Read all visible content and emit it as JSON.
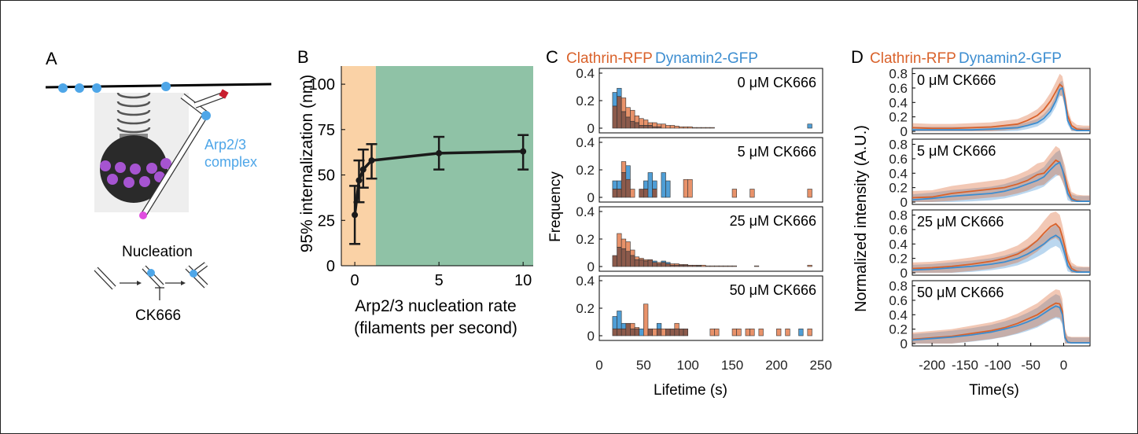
{
  "figure": {
    "panel_letters": [
      "A",
      "B",
      "C",
      "D"
    ],
    "colors": {
      "clathrin": "#D9622B",
      "dynamin": "#3C8DD0",
      "clathrin_bar": "#E8926A",
      "dynamin_bar": "#4F9ED6",
      "overlap_bar": "#8C5A4B",
      "nucleation_low": "#FAD2A6",
      "nucleation_high": "#8FC2A6",
      "arp23": "#4EA6E8",
      "cargo": "#A654D1",
      "pointed_end": "#E04CE0",
      "capped_end": "#C81E2E",
      "vesicle": "#2A2A2A"
    }
  },
  "panel_a": {
    "letter": "A",
    "arp_label_line1": "Arp2/3",
    "arp_label_line2": "complex",
    "nucleation_label": "Nucleation",
    "inhibitor_label": "CK666"
  },
  "panel_b": {
    "letter": "B",
    "chart_data": {
      "type": "line",
      "x": [
        0,
        0.25,
        0.5,
        1,
        5,
        10
      ],
      "y": [
        28,
        47,
        53,
        58,
        62,
        63
      ],
      "error_low": [
        12,
        35,
        43,
        48,
        53,
        53
      ],
      "error_high": [
        44,
        58,
        64,
        67,
        71,
        72
      ],
      "xlabel": "Arp2/3 nucleation rate",
      "xlabel_line2": "(filaments per second)",
      "ylabel": "95% internalization (nm)",
      "xlim": [
        -0.8,
        10.6
      ],
      "ylim": [
        0,
        110
      ],
      "xticks": [
        0,
        5,
        10
      ],
      "yticks": [
        0,
        25,
        50,
        75,
        100
      ],
      "shaded_regions": [
        [
          -0.8,
          1.25
        ],
        [
          1.25,
          10.6
        ]
      ]
    }
  },
  "panel_c": {
    "letter": "C",
    "legend_clathrin": "Clathrin-RFP",
    "legend_dynamin": "Dynamin2-GFP",
    "xlabel": "Lifetime (s)",
    "ylabel": "Frequency",
    "xticks": [
      0,
      50,
      100,
      150,
      200,
      250
    ],
    "yticks": [
      0,
      0.2,
      0.4
    ],
    "chart_data": [
      {
        "type": "bar",
        "label": "0 μM CK666",
        "bin_width": 5,
        "bins": [
          15,
          20,
          25,
          30,
          35,
          40,
          45,
          50,
          55,
          60,
          65,
          70,
          75,
          80,
          85,
          90,
          95,
          100,
          105,
          110,
          115,
          120,
          125,
          130,
          135,
          140,
          145,
          150,
          155,
          160,
          165,
          170,
          175,
          180,
          185,
          190,
          195,
          200,
          205,
          210,
          215,
          220,
          225,
          230,
          235,
          240
        ],
        "clathrin": [
          0.16,
          0.23,
          0.22,
          0.15,
          0.13,
          0.09,
          0.07,
          0.06,
          0.04,
          0.04,
          0.03,
          0.03,
          0.02,
          0.02,
          0.015,
          0.01,
          0.01,
          0.01,
          0.005,
          0.005,
          0.005,
          0.005,
          0.005,
          0,
          0,
          0,
          0,
          0,
          0,
          0,
          0,
          0,
          0,
          0,
          0,
          0,
          0,
          0,
          0,
          0,
          0,
          0,
          0,
          0,
          0,
          0
        ],
        "dynamin": [
          0.26,
          0.29,
          0.12,
          0.08,
          0.05,
          0.04,
          0.02,
          0.02,
          0.02,
          0.01,
          0.01,
          0,
          0,
          0,
          0,
          0,
          0,
          0,
          0,
          0,
          0,
          0,
          0,
          0,
          0,
          0,
          0,
          0,
          0,
          0,
          0,
          0,
          0,
          0,
          0,
          0,
          0,
          0,
          0,
          0,
          0,
          0,
          0,
          0,
          0.03,
          0
        ]
      },
      {
        "type": "bar",
        "label": "5 μM CK666",
        "bin_width": 5,
        "bins": [
          15,
          20,
          25,
          30,
          35,
          40,
          45,
          50,
          55,
          60,
          65,
          70,
          75,
          80,
          85,
          90,
          95,
          100,
          105,
          110,
          115,
          120,
          125,
          130,
          135,
          140,
          145,
          150,
          155,
          160,
          165,
          170,
          175,
          180,
          185,
          190,
          195,
          200,
          205,
          210,
          215,
          220,
          225,
          230,
          235,
          240
        ],
        "clathrin": [
          0.06,
          0.06,
          0.26,
          0.13,
          0.06,
          0,
          0.06,
          0.06,
          0,
          0.06,
          0,
          0,
          0,
          0,
          0,
          0,
          0.13,
          0.13,
          0,
          0,
          0,
          0,
          0,
          0,
          0,
          0,
          0,
          0.06,
          0,
          0,
          0,
          0.06,
          0,
          0,
          0,
          0,
          0,
          0,
          0,
          0,
          0,
          0,
          0,
          0,
          0.06,
          0
        ],
        "dynamin": [
          0.12,
          0.12,
          0.18,
          0.23,
          0,
          0,
          0.06,
          0.12,
          0.18,
          0.12,
          0,
          0.18,
          0.12,
          0,
          0,
          0,
          0,
          0,
          0,
          0,
          0,
          0,
          0,
          0,
          0,
          0,
          0,
          0,
          0,
          0,
          0,
          0,
          0,
          0,
          0,
          0,
          0,
          0,
          0,
          0,
          0,
          0,
          0,
          0,
          0,
          0
        ]
      },
      {
        "type": "bar",
        "label": "25 μM CK666",
        "bin_width": 5,
        "bins": [
          15,
          20,
          25,
          30,
          35,
          40,
          45,
          50,
          55,
          60,
          65,
          70,
          75,
          80,
          85,
          90,
          95,
          100,
          105,
          110,
          115,
          120,
          125,
          130,
          135,
          140,
          145,
          150,
          155,
          160,
          165,
          170,
          175,
          180,
          185,
          190,
          195,
          200,
          205,
          210,
          215,
          220,
          225,
          230,
          235,
          240
        ],
        "clathrin": [
          0.08,
          0.24,
          0.2,
          0.18,
          0.12,
          0.07,
          0.06,
          0.05,
          0.05,
          0.03,
          0.03,
          0.03,
          0.02,
          0.02,
          0.02,
          0.015,
          0.015,
          0.01,
          0.01,
          0.01,
          0.01,
          0.005,
          0.005,
          0.005,
          0.005,
          0.005,
          0.005,
          0.005,
          0,
          0,
          0,
          0,
          0.005,
          0,
          0,
          0,
          0,
          0,
          0,
          0,
          0,
          0,
          0,
          0,
          0.01,
          0
        ],
        "dynamin": [
          0.08,
          0.14,
          0.13,
          0.11,
          0.08,
          0.05,
          0.05,
          0.04,
          0.05,
          0.04,
          0.02,
          0.04,
          0.03,
          0.01,
          0.01,
          0.01,
          0.01,
          0.01,
          0.01,
          0.005,
          0,
          0,
          0,
          0,
          0,
          0,
          0,
          0,
          0,
          0,
          0,
          0,
          0,
          0,
          0,
          0,
          0,
          0,
          0,
          0,
          0,
          0,
          0,
          0,
          0,
          0
        ]
      },
      {
        "type": "bar",
        "label": "50 μM CK666",
        "bin_width": 5,
        "bins": [
          15,
          20,
          25,
          30,
          35,
          40,
          45,
          50,
          55,
          60,
          65,
          70,
          75,
          80,
          85,
          90,
          95,
          100,
          105,
          110,
          115,
          120,
          125,
          130,
          135,
          140,
          145,
          150,
          155,
          160,
          165,
          170,
          175,
          180,
          185,
          190,
          195,
          200,
          205,
          210,
          215,
          220,
          225,
          230,
          235,
          240
        ],
        "clathrin": [
          0.05,
          0.05,
          0.05,
          0.09,
          0.09,
          0.06,
          0.0,
          0.23,
          0.05,
          0.05,
          0.05,
          0.05,
          0.05,
          0.05,
          0.09,
          0.05,
          0.05,
          0.0,
          0.0,
          0.0,
          0.0,
          0.0,
          0.05,
          0.05,
          0.0,
          0.0,
          0.0,
          0.05,
          0.05,
          0.0,
          0.05,
          0.05,
          0.0,
          0.05,
          0.0,
          0.0,
          0.0,
          0.05,
          0.0,
          0.05,
          0.0,
          0.0,
          0.0,
          0.0,
          0.05,
          0.0
        ],
        "dynamin": [
          0.14,
          0.18,
          0.09,
          0.09,
          0.05,
          0.05,
          0.05,
          0.0,
          0.05,
          0.0,
          0.09,
          0.0,
          0.05,
          0.05,
          0.05,
          0.05,
          0.05,
          0.0,
          0.0,
          0.0,
          0.0,
          0.0,
          0.0,
          0.0,
          0.0,
          0.0,
          0.0,
          0.0,
          0.0,
          0.0,
          0.0,
          0.0,
          0.0,
          0.0,
          0.0,
          0.0,
          0.0,
          0.0,
          0.0,
          0.0,
          0.0,
          0.0,
          0.05,
          0.0,
          0.0,
          0.0
        ]
      }
    ]
  },
  "panel_d": {
    "letter": "D",
    "legend_clathrin": "Clathrin-RFP",
    "legend_dynamin": "Dynamin2-GFP",
    "xlabel": "Time(s)",
    "ylabel": "Normalized intensity (A.U.)",
    "xticks": [
      -200,
      -150,
      -100,
      -50,
      0
    ],
    "xtick_labels": [
      "-200",
      "-150",
      "-100",
      "-50",
      "0"
    ],
    "yticks": [
      0,
      0.2,
      0.4,
      0.6,
      0.8
    ],
    "xlim": [
      -230,
      40
    ],
    "ylim": [
      0,
      0.85
    ],
    "chart_data": [
      {
        "type": "line",
        "label": "0 μM CK666",
        "x": [
          -230,
          -200,
          -170,
          -140,
          -110,
          -90,
          -70,
          -55,
          -40,
          -30,
          -20,
          -12,
          -6,
          -2,
          2,
          6,
          12,
          20,
          30,
          40
        ],
        "clathrin": [
          0.05,
          0.04,
          0.04,
          0.05,
          0.06,
          0.08,
          0.1,
          0.15,
          0.22,
          0.3,
          0.42,
          0.55,
          0.65,
          0.62,
          0.45,
          0.22,
          0.08,
          0.03,
          0.02,
          0.02
        ],
        "dynamin": [
          0.02,
          0.02,
          0.02,
          0.02,
          0.03,
          0.04,
          0.05,
          0.08,
          0.12,
          0.18,
          0.28,
          0.42,
          0.58,
          0.6,
          0.4,
          0.15,
          0.04,
          0.01,
          0.01,
          0.01
        ],
        "clathrin_band": 0.14,
        "dynamin_band": 0.1
      },
      {
        "type": "line",
        "label": "5 μM CK666",
        "x": [
          -230,
          -200,
          -170,
          -140,
          -110,
          -90,
          -70,
          -55,
          -40,
          -30,
          -20,
          -12,
          -6,
          -2,
          2,
          6,
          12,
          20,
          30,
          40
        ],
        "clathrin": [
          0.06,
          0.07,
          0.12,
          0.15,
          0.18,
          0.2,
          0.25,
          0.3,
          0.38,
          0.4,
          0.5,
          0.58,
          0.55,
          0.45,
          0.35,
          0.2,
          0.05,
          0.02,
          0.01,
          0.01
        ],
        "dynamin": [
          0.03,
          0.05,
          0.08,
          0.1,
          0.12,
          0.15,
          0.2,
          0.25,
          0.3,
          0.35,
          0.45,
          0.52,
          0.55,
          0.45,
          0.3,
          0.12,
          0.03,
          0.01,
          0.01,
          0.01
        ],
        "clathrin_band": 0.2,
        "dynamin_band": 0.18
      },
      {
        "type": "line",
        "label": "25 μM CK666",
        "x": [
          -230,
          -200,
          -170,
          -140,
          -110,
          -90,
          -70,
          -55,
          -40,
          -30,
          -20,
          -12,
          -6,
          -2,
          2,
          6,
          12,
          20,
          30,
          40
        ],
        "clathrin": [
          0.06,
          0.07,
          0.09,
          0.12,
          0.16,
          0.2,
          0.26,
          0.34,
          0.45,
          0.55,
          0.64,
          0.68,
          0.62,
          0.5,
          0.35,
          0.18,
          0.06,
          0.02,
          0.01,
          0.01
        ],
        "dynamin": [
          0.04,
          0.05,
          0.07,
          0.09,
          0.12,
          0.15,
          0.2,
          0.26,
          0.34,
          0.4,
          0.48,
          0.52,
          0.48,
          0.38,
          0.25,
          0.1,
          0.03,
          0.01,
          0.01,
          0.01
        ],
        "clathrin_band": 0.18,
        "dynamin_band": 0.16
      },
      {
        "type": "line",
        "label": "50 μM CK666",
        "x": [
          -230,
          -200,
          -170,
          -140,
          -110,
          -90,
          -70,
          -55,
          -40,
          -30,
          -20,
          -12,
          -6,
          -2,
          2,
          6,
          12,
          20,
          30,
          40
        ],
        "clathrin": [
          0.06,
          0.08,
          0.1,
          0.14,
          0.18,
          0.22,
          0.28,
          0.34,
          0.4,
          0.46,
          0.52,
          0.56,
          0.55,
          0.45,
          0.1,
          0.02,
          0.01,
          0.01,
          0.01,
          0.01
        ],
        "dynamin": [
          0.05,
          0.07,
          0.09,
          0.12,
          0.16,
          0.2,
          0.25,
          0.3,
          0.36,
          0.42,
          0.48,
          0.52,
          0.5,
          0.4,
          0.08,
          0.02,
          0.01,
          0.01,
          0.01,
          0.01
        ],
        "clathrin_band": 0.2,
        "dynamin_band": 0.18
      }
    ]
  }
}
